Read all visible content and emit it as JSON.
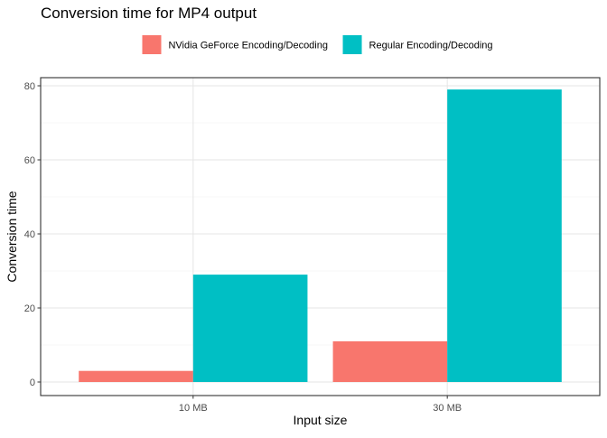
{
  "chart_data": {
    "type": "bar",
    "title": "Conversion time for MP4 output",
    "xlabel": "Input size",
    "ylabel": "Conversion time",
    "categories": [
      "10 MB",
      "30 MB"
    ],
    "series": [
      {
        "name": "NVidia GeForce Encoding/Decoding",
        "values": [
          3,
          11
        ],
        "color": "#F8766D"
      },
      {
        "name": "Regular Encoding/Decoding",
        "values": [
          29,
          79
        ],
        "color": "#00BFC4"
      }
    ],
    "ylim": [
      0,
      85
    ],
    "yticks": [
      0,
      20,
      40,
      60,
      80
    ],
    "grid": true,
    "legend_position": "top"
  }
}
